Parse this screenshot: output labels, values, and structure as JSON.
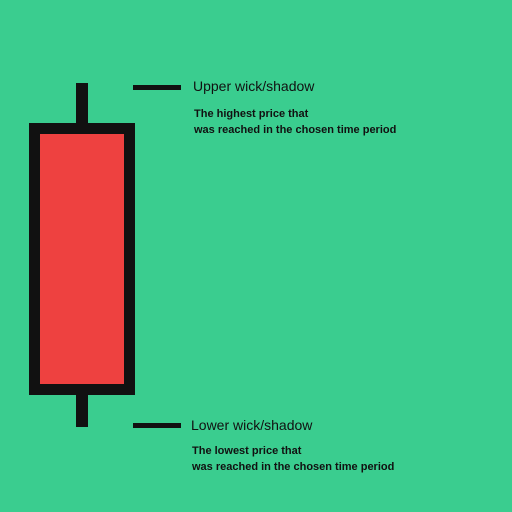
{
  "colors": {
    "background": "#3acd8f",
    "body_fill": "#ee4140",
    "outline": "#111111"
  },
  "upper": {
    "label": "Upper wick/shadow",
    "desc_line1": "The highest price that",
    "desc_line2": "was reached in the chosen time period"
  },
  "lower": {
    "label": "Lower wick/shadow",
    "desc_line1": "The lowest price that",
    "desc_line2": "was reached in the chosen time period"
  }
}
